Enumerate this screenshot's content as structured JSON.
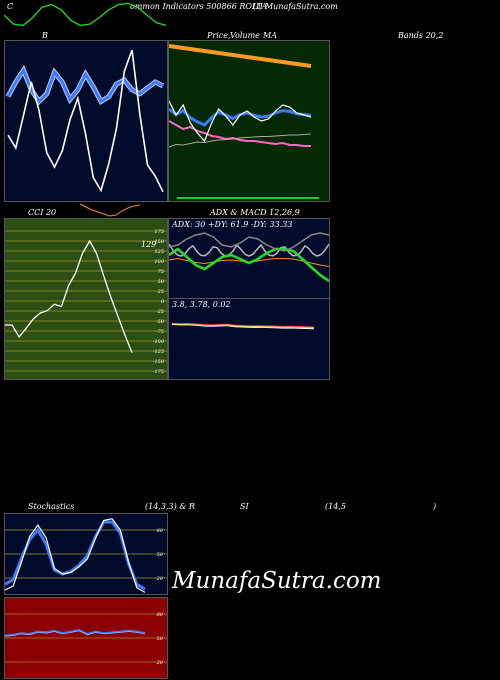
{
  "header": {
    "left_label": "C",
    "title": "ommon  Indicators 500866  ROLTA",
    "site": "(I) MunafaSutra.com"
  },
  "labels": {
    "bb": "B",
    "price_ma_a": "Price,",
    "price_ma_b": "Volume",
    "price_ma_c": "MA",
    "bands": "Bands 20,2",
    "cci": "CCI 20",
    "adx_macd": "ADX  & MACD 12,26,9",
    "stoch_a": "Stochastics",
    "stoch_b": "(14,3,3) & R",
    "stoch_c": "SI",
    "stoch_d": "(14,5",
    "stoch_e": ")"
  },
  "watermark": "MunafaSutra.com",
  "colors": {
    "panel_navy": "#000a2a",
    "panel_green": "#032903",
    "cci_bg": "#2d4e12",
    "rsi_bg": "#8b0000",
    "grid_olive": "#9a9a2a",
    "blue_line": "#3a7bff",
    "green_line": "#22dd22",
    "orange": "#ff8c1a",
    "pink": "#ff66cc"
  },
  "chart_data": [
    {
      "id": "top_strip",
      "type": "line",
      "series": [
        {
          "values": [
            0.5,
            0.85,
            0.9,
            0.6,
            0.2,
            0.1,
            0.3,
            0.7,
            0.9,
            0.85,
            0.6,
            0.3,
            0.1,
            0.05,
            0.2,
            0.5,
            0.8,
            0.9
          ]
        }
      ]
    },
    {
      "id": "bollinger",
      "type": "line",
      "series": [
        {
          "values": [
            70,
            88,
            42,
            -5,
            35,
            95,
            115,
            92,
            48,
            18,
            68,
            130,
            148,
            110,
            60,
            -20,
            -50,
            40,
            112,
            128,
            150
          ]
        },
        {
          "values": [
            55,
            40,
            28,
            48,
            60,
            52,
            30,
            40,
            58,
            48,
            32,
            45,
            60,
            55,
            42,
            38,
            48,
            52,
            46,
            40,
            44
          ]
        }
      ]
    },
    {
      "id": "price_ma",
      "type": "line",
      "series": [
        {
          "values": [
            48,
            53,
            52,
            55,
            58,
            57,
            60,
            62,
            63,
            64,
            66,
            67,
            68,
            69,
            69,
            70,
            71,
            72,
            72,
            73,
            74
          ]
        },
        {
          "values": [
            80,
            84,
            88,
            86,
            90,
            92,
            95,
            96,
            98,
            97,
            99,
            100,
            100,
            101,
            102,
            103,
            102,
            104,
            104,
            105,
            105
          ]
        },
        {
          "values": [
            20,
            34,
            24,
            42,
            52,
            60,
            42,
            28,
            35,
            44,
            34,
            30,
            36,
            40,
            38,
            30,
            24,
            26,
            32,
            34,
            36
          ]
        },
        {
          "values": [
            5,
            6,
            7,
            8,
            9,
            10,
            11,
            12,
            13,
            14,
            15,
            16,
            17,
            18,
            19,
            20,
            21,
            22,
            23,
            24,
            25
          ]
        }
      ]
    },
    {
      "id": "cci",
      "type": "line",
      "title": "CCI 20",
      "y_ticks": [
        175,
        150,
        125,
        100,
        75,
        50,
        25,
        0,
        -25,
        -50,
        -75,
        -100,
        -125,
        -150,
        -175
      ],
      "last_value": 129,
      "series": [
        {
          "values": [
            60,
            60,
            90,
            68,
            45,
            30,
            24,
            8,
            14,
            -38,
            -70,
            -120,
            -150,
            -118,
            -62,
            -10,
            38,
            85,
            129
          ]
        }
      ]
    },
    {
      "id": "adx",
      "type": "line",
      "title": "ADX: 30  +DY: 61.9 -DY: 33.33",
      "series": [
        {
          "values": [
            36,
            30,
            38,
            46,
            50,
            44,
            38,
            36,
            40,
            44,
            40,
            34,
            30,
            30,
            32,
            40,
            48,
            56,
            62
          ]
        },
        {
          "values": [
            48,
            46,
            40,
            36,
            34,
            38,
            46,
            48,
            44,
            38,
            40,
            46,
            50,
            52,
            48,
            42,
            36,
            34,
            36
          ]
        }
      ]
    },
    {
      "id": "macd",
      "type": "line",
      "title": "3.8,  3.78,  0.02",
      "series": [
        {
          "values": [
            0.1,
            0.15,
            0.12,
            0.2,
            0.3,
            0.35,
            0.3,
            0.25,
            0.4,
            0.45,
            0.5,
            0.48,
            0.52,
            0.55,
            0.6,
            0.58,
            0.62,
            0.65,
            0.7
          ]
        }
      ]
    },
    {
      "id": "stochastics",
      "type": "line",
      "y_ticks": [
        80,
        50,
        20
      ],
      "series": [
        {
          "values": [
            95,
            90,
            60,
            28,
            14,
            30,
            68,
            75,
            73,
            66,
            56,
            30,
            8,
            6,
            20,
            60,
            92,
            98
          ]
        },
        {
          "values": [
            88,
            82,
            55,
            32,
            20,
            38,
            70,
            75,
            72,
            64,
            52,
            28,
            10,
            10,
            24,
            62,
            88,
            94
          ]
        }
      ]
    },
    {
      "id": "rsi",
      "type": "line",
      "y_ticks": [
        80,
        50,
        20
      ],
      "series": [
        {
          "values": [
            47,
            46,
            44,
            45,
            42,
            43,
            41,
            44,
            42,
            40,
            45,
            42,
            44,
            43,
            42,
            41,
            42,
            44
          ]
        }
      ]
    }
  ]
}
